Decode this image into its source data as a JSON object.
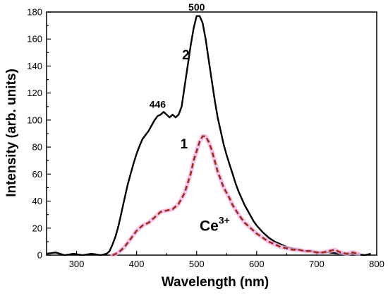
{
  "chart_data": {
    "type": "line",
    "title": "",
    "xlabel": "Wavelength (nm)",
    "ylabel": "Intensity (arb. units)",
    "xlim": [
      250,
      800
    ],
    "ylim": [
      0,
      180
    ],
    "x_ticks": [
      300,
      400,
      500,
      600,
      700,
      800
    ],
    "y_ticks": [
      0,
      20,
      40,
      60,
      80,
      100,
      120,
      140,
      160,
      180
    ],
    "grid": false,
    "series": [
      {
        "name": "",
        "label": "2",
        "color": "#000000",
        "style": "solid",
        "points": [
          [
            250,
            1
          ],
          [
            265,
            2
          ],
          [
            280,
            0
          ],
          [
            295,
            1
          ],
          [
            310,
            0
          ],
          [
            325,
            1
          ],
          [
            340,
            0
          ],
          [
            350,
            1
          ],
          [
            355,
            3
          ],
          [
            360,
            8
          ],
          [
            365,
            14
          ],
          [
            370,
            22
          ],
          [
            375,
            32
          ],
          [
            380,
            42
          ],
          [
            385,
            52
          ],
          [
            390,
            60
          ],
          [
            395,
            68
          ],
          [
            400,
            75
          ],
          [
            405,
            81
          ],
          [
            410,
            86
          ],
          [
            415,
            89
          ],
          [
            420,
            92
          ],
          [
            425,
            96
          ],
          [
            430,
            100
          ],
          [
            435,
            103
          ],
          [
            440,
            104
          ],
          [
            445,
            106
          ],
          [
            450,
            104
          ],
          [
            455,
            102
          ],
          [
            460,
            104
          ],
          [
            465,
            102
          ],
          [
            470,
            104
          ],
          [
            475,
            110
          ],
          [
            480,
            125
          ],
          [
            485,
            140
          ],
          [
            490,
            155
          ],
          [
            495,
            168
          ],
          [
            500,
            177
          ],
          [
            505,
            177
          ],
          [
            510,
            172
          ],
          [
            515,
            160
          ],
          [
            520,
            145
          ],
          [
            525,
            130
          ],
          [
            530,
            115
          ],
          [
            535,
            102
          ],
          [
            540,
            92
          ],
          [
            545,
            82
          ],
          [
            550,
            74
          ],
          [
            555,
            67
          ],
          [
            560,
            60
          ],
          [
            565,
            53
          ],
          [
            570,
            47
          ],
          [
            575,
            42
          ],
          [
            580,
            37
          ],
          [
            585,
            33
          ],
          [
            590,
            29
          ],
          [
            595,
            25
          ],
          [
            600,
            22
          ],
          [
            610,
            17
          ],
          [
            620,
            13
          ],
          [
            630,
            10
          ],
          [
            640,
            8
          ],
          [
            650,
            6
          ],
          [
            660,
            5
          ],
          [
            670,
            4
          ],
          [
            680,
            3
          ],
          [
            690,
            3
          ],
          [
            700,
            2
          ],
          [
            720,
            2
          ],
          [
            740,
            1
          ],
          [
            760,
            1
          ],
          [
            780,
            0
          ],
          [
            790,
            1
          ]
        ]
      },
      {
        "name": "",
        "label": "1",
        "color": "#a52a1e",
        "halo": "#f2b5e6",
        "style": "dashed",
        "points": [
          [
            360,
            0
          ],
          [
            370,
            2
          ],
          [
            380,
            6
          ],
          [
            390,
            12
          ],
          [
            400,
            18
          ],
          [
            410,
            22
          ],
          [
            420,
            24
          ],
          [
            430,
            28
          ],
          [
            440,
            32
          ],
          [
            450,
            33
          ],
          [
            460,
            34
          ],
          [
            470,
            38
          ],
          [
            480,
            46
          ],
          [
            490,
            60
          ],
          [
            495,
            70
          ],
          [
            500,
            77
          ],
          [
            505,
            84
          ],
          [
            510,
            88
          ],
          [
            515,
            88
          ],
          [
            520,
            84
          ],
          [
            525,
            78
          ],
          [
            530,
            70
          ],
          [
            535,
            62
          ],
          [
            540,
            56
          ],
          [
            545,
            50
          ],
          [
            550,
            46
          ],
          [
            555,
            42
          ],
          [
            560,
            37
          ],
          [
            570,
            30
          ],
          [
            580,
            24
          ],
          [
            590,
            20
          ],
          [
            600,
            16
          ],
          [
            610,
            13
          ],
          [
            620,
            10
          ],
          [
            630,
            8
          ],
          [
            640,
            6
          ],
          [
            650,
            5
          ],
          [
            660,
            4
          ],
          [
            670,
            4
          ],
          [
            680,
            3
          ],
          [
            690,
            3
          ],
          [
            700,
            2
          ],
          [
            710,
            2
          ],
          [
            720,
            3
          ],
          [
            730,
            4
          ],
          [
            740,
            2
          ],
          [
            750,
            1
          ],
          [
            760,
            2
          ],
          [
            770,
            1
          ]
        ]
      }
    ],
    "annotations": [
      {
        "text": "500",
        "x": 500,
        "y": 181
      },
      {
        "text": "446",
        "x": 435,
        "y": 109
      },
      {
        "text": "2",
        "x": 482,
        "y": 145
      },
      {
        "text": "1",
        "x": 479,
        "y": 79
      }
    ],
    "ion_label": {
      "base": "Ce",
      "superscript": "3+",
      "x": 505,
      "y": 18
    }
  }
}
